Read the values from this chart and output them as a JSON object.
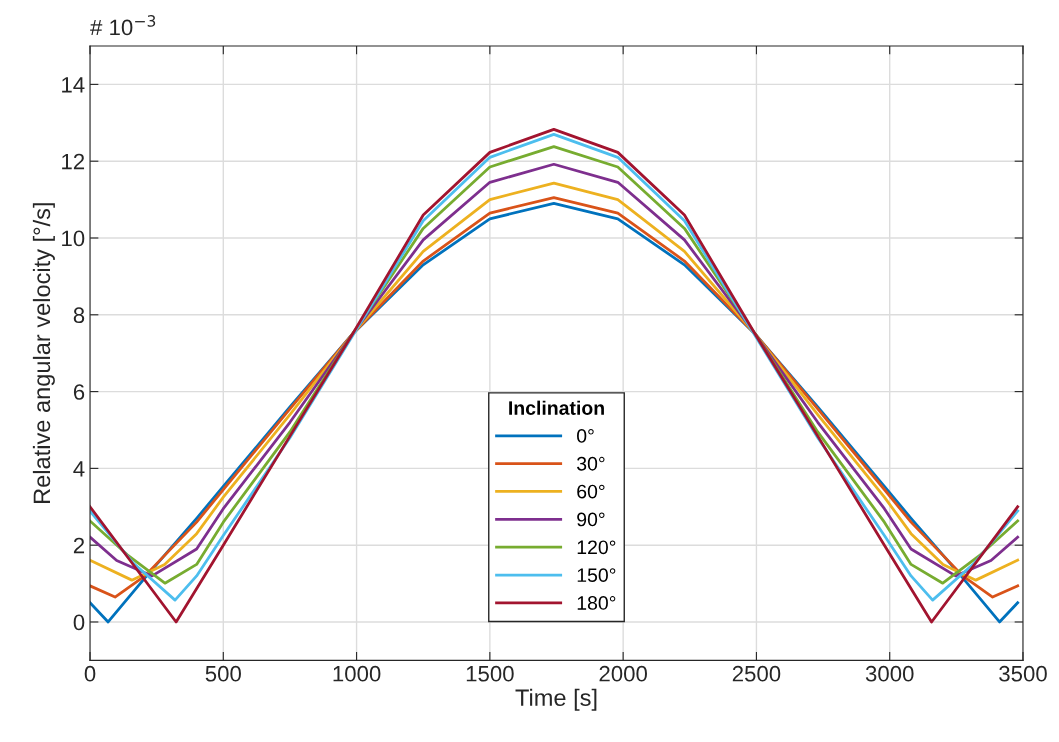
{
  "chart_data": {
    "type": "line",
    "xlabel": "Time [s]",
    "ylabel": "Relative angular velocity [°/s]",
    "legend_title": "Inclination",
    "annotations": [
      "# 10$^{−3}$"
    ],
    "xlim": [
      0,
      3500
    ],
    "xticks": [
      0,
      500,
      1000,
      1500,
      2000,
      2500,
      3000,
      3500
    ],
    "ylim": [
      -1,
      15
    ],
    "yticks": [
      0,
      2,
      4,
      6,
      8,
      10,
      12,
      14
    ],
    "grid": true,
    "legend": "bottom",
    "line_style": "solid",
    "marker": "none",
    "series": [
      {
        "name": "0°",
        "color": "#0072bd",
        "x": [
          0,
          68,
          206,
          400,
          500,
          750,
          985,
          1250,
          1500,
          1740,
          1980,
          2230,
          2495,
          2730,
          2980,
          3080,
          3274,
          3412,
          3480
        ],
        "values": [
          0.5,
          0,
          1.15,
          2.7,
          3.53,
          5.6,
          7.5,
          9.3,
          10.5,
          10.9,
          10.5,
          9.3,
          7.5,
          5.6,
          3.53,
          2.7,
          1.15,
          0,
          0.5
        ]
      },
      {
        "name": "30°",
        "color": "#d95319",
        "x": [
          0,
          94,
          206,
          400,
          500,
          750,
          985,
          1250,
          1500,
          1740,
          1980,
          2230,
          2495,
          2730,
          2980,
          3080,
          3274,
          3386,
          3480
        ],
        "values": [
          0.94,
          0.65,
          1.2,
          2.6,
          3.45,
          5.55,
          7.5,
          9.4,
          10.65,
          11.05,
          10.65,
          9.4,
          7.5,
          5.55,
          3.45,
          2.6,
          1.2,
          0.65,
          0.94
        ]
      },
      {
        "name": "60°",
        "color": "#edb120",
        "x": [
          0,
          157,
          280,
          400,
          500,
          750,
          985,
          1250,
          1500,
          1740,
          1980,
          2230,
          2495,
          2730,
          2980,
          3080,
          3200,
          3323,
          3480
        ],
        "values": [
          1.61,
          1.09,
          1.5,
          2.3,
          3.25,
          5.4,
          7.5,
          9.65,
          11.0,
          11.43,
          11.0,
          9.65,
          7.5,
          5.4,
          3.25,
          2.3,
          1.5,
          1.09,
          1.61
        ]
      },
      {
        "name": "90°",
        "color": "#7e2f8e",
        "x": [
          0,
          100,
          233,
          400,
          500,
          750,
          985,
          1250,
          1500,
          1740,
          1980,
          2230,
          2495,
          2730,
          2980,
          3080,
          3247,
          3380,
          3480
        ],
        "values": [
          2.21,
          1.6,
          1.2,
          1.9,
          2.95,
          5.2,
          7.5,
          9.95,
          11.45,
          11.92,
          11.45,
          9.95,
          7.5,
          5.2,
          2.95,
          1.9,
          1.2,
          1.6,
          2.21
        ]
      },
      {
        "name": "120°",
        "color": "#77ac30",
        "x": [
          0,
          140,
          281,
          400,
          500,
          750,
          985,
          1250,
          1500,
          1740,
          1980,
          2230,
          2495,
          2730,
          2980,
          3080,
          3199,
          3340,
          3480
        ],
        "values": [
          2.63,
          1.75,
          1.01,
          1.5,
          2.6,
          4.95,
          7.5,
          10.25,
          11.85,
          12.38,
          11.85,
          10.25,
          7.5,
          4.95,
          2.6,
          1.5,
          1.01,
          1.75,
          2.63
        ]
      },
      {
        "name": "150°",
        "color": "#4dbeee",
        "x": [
          0,
          160,
          319,
          400,
          500,
          750,
          1250,
          1500,
          1740,
          1980,
          2230,
          2730,
          2980,
          3080,
          3161,
          3320,
          3480
        ],
        "values": [
          2.89,
          1.55,
          0.57,
          1.2,
          2.25,
          4.8,
          10.45,
          12.1,
          12.7,
          12.1,
          10.45,
          4.8,
          2.25,
          1.2,
          0.57,
          1.55,
          2.89
        ]
      },
      {
        "name": "180°",
        "color": "#a2142f",
        "x": [
          0,
          323,
          500,
          750,
          985,
          1250,
          1500,
          1740,
          1980,
          2230,
          2495,
          2730,
          2980,
          3157,
          3480
        ],
        "values": [
          3.0,
          0,
          2.0,
          4.84,
          7.5,
          10.6,
          12.23,
          12.83,
          12.23,
          10.6,
          7.5,
          4.84,
          2.0,
          0,
          3.0
        ]
      }
    ]
  }
}
